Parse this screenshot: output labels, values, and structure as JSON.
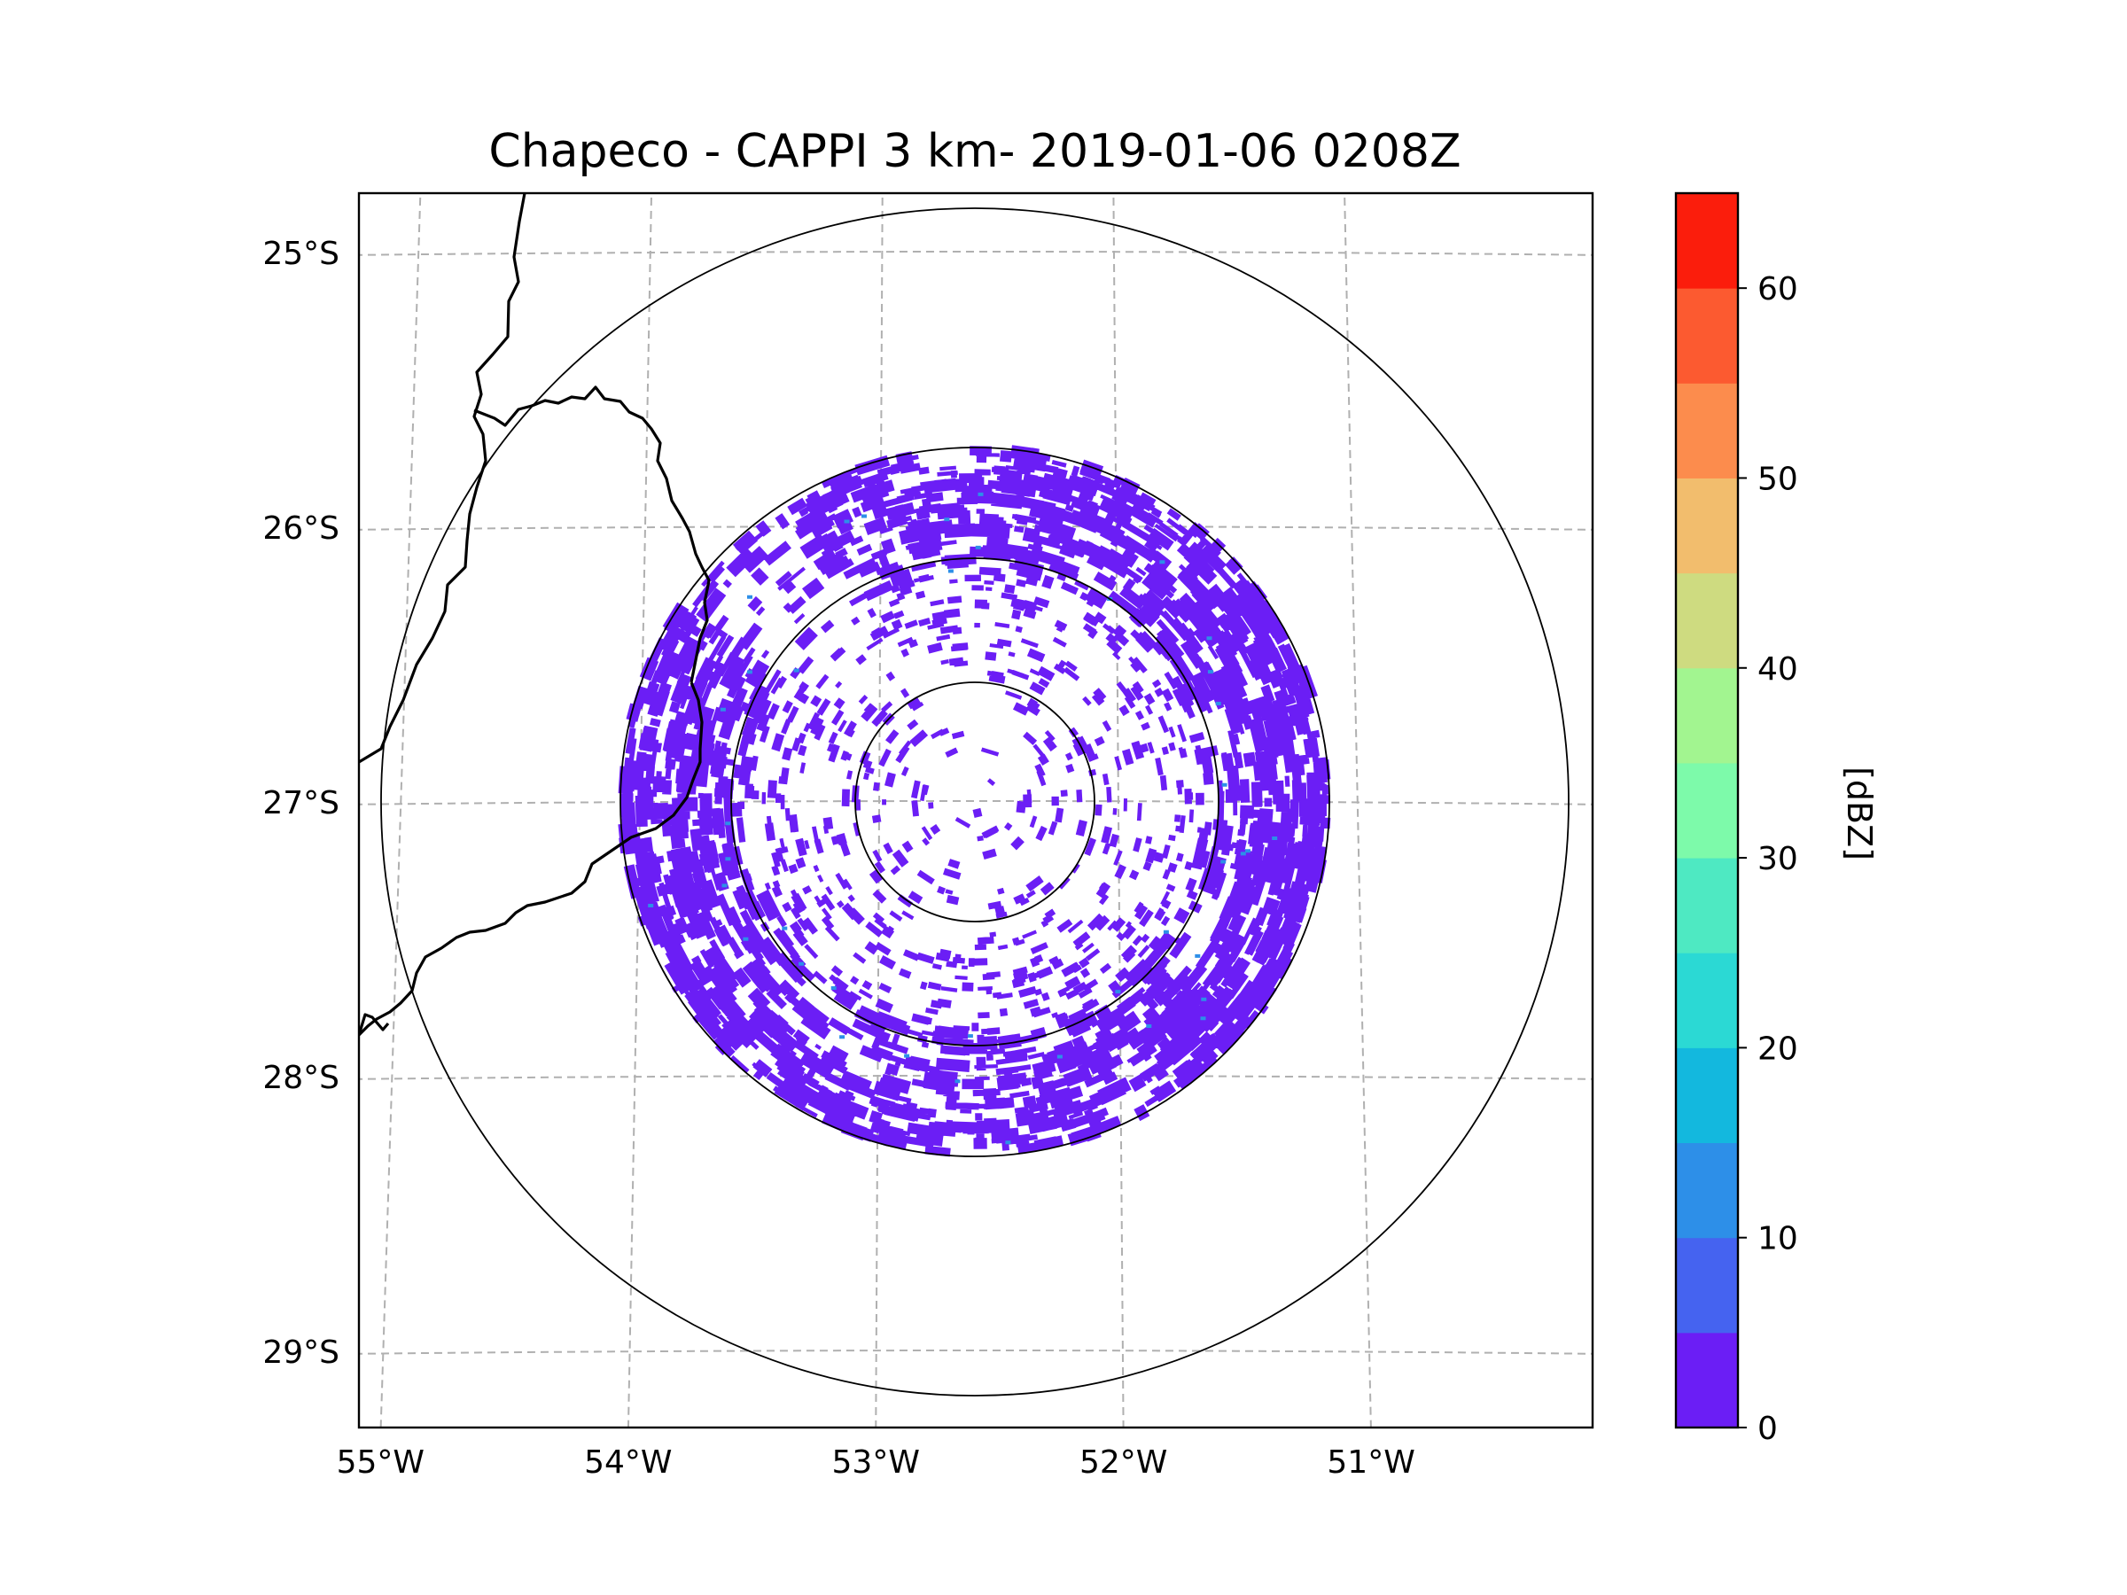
{
  "title": "Chapeco - CAPPI 3 km- 2019-01-06 0208Z",
  "map": {
    "lat_ticks": [
      "25°S",
      "26°S",
      "27°S",
      "28°S",
      "29°S"
    ],
    "lon_ticks": [
      "55°W",
      "54°W",
      "53°W",
      "52°W",
      "51°W"
    ],
    "gridlines": true,
    "radar_center": {
      "lat": -27.0,
      "lon": -52.6
    },
    "range_rings": 4,
    "data_extent_ring": 3,
    "echo_value_dbz": 2,
    "borders": "state boundaries (Argentina / Santa Catarina / Paraná / Rio Grande do Sul)"
  },
  "colorbar": {
    "label": "[dBZ]",
    "min": 0,
    "max": 65,
    "step": 5,
    "tick_labels": [
      "0",
      "10",
      "20",
      "30",
      "40",
      "50",
      "60"
    ],
    "tick_values": [
      0,
      10,
      20,
      30,
      40,
      50,
      60
    ],
    "colors": [
      "#6b1ef5",
      "#4563f0",
      "#2d8fe8",
      "#13b8de",
      "#2bd9d4",
      "#4ee9c2",
      "#7dfaaa",
      "#a2f590",
      "#cedb80",
      "#f2bd6d",
      "#fc8c4d",
      "#fc5a30",
      "#fb1d0c"
    ]
  }
}
